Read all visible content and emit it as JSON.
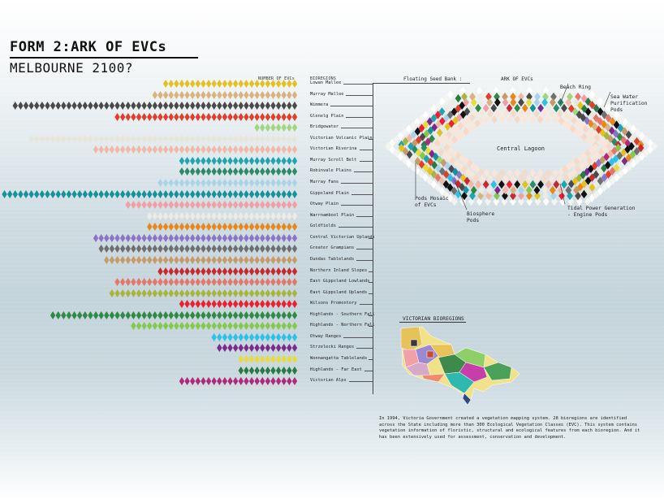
{
  "title": "FORM 2:ARK OF EVCs",
  "subtitle": "MELBOURNE 2100?",
  "headers": {
    "number": "NUMBER OF EVCs",
    "bioregions": "BIOREGIONS"
  },
  "bioregions": [
    {
      "name": "Lowan Mallee",
      "count": 25,
      "color": "#e3c11e"
    },
    {
      "name": "Murray Mallee",
      "count": 27,
      "color": "#d9b27e"
    },
    {
      "name": "Wimmera",
      "count": 53,
      "color": "#4a4a4a"
    },
    {
      "name": "Glenelg Plain",
      "count": 34,
      "color": "#e0402a"
    },
    {
      "name": "Bridgewater",
      "count": 8,
      "color": "#9fd77a"
    },
    {
      "name": "Victorian Volcanic Plain",
      "count": 50,
      "color": "#e8e6dc"
    },
    {
      "name": "Victorian Riverina",
      "count": 38,
      "color": "#f2b8a6"
    },
    {
      "name": "Murray Scroll Belt",
      "count": 22,
      "color": "#1fa4b2"
    },
    {
      "name": "Robinvale Plains",
      "count": 22,
      "color": "#2b8a6a"
    },
    {
      "name": "Murray Fans",
      "count": 26,
      "color": "#a8d4ea"
    },
    {
      "name": "Gippsland Plain",
      "count": 55,
      "color": "#16929b"
    },
    {
      "name": "Otway Plain",
      "count": 32,
      "color": "#f0a0a4"
    },
    {
      "name": "Warrnambool Plain",
      "count": 28,
      "color": "#ecebe4"
    },
    {
      "name": "Goldfields",
      "count": 28,
      "color": "#e8881c"
    },
    {
      "name": "Central Victorian Uplands",
      "count": 38,
      "color": "#8c74c4"
    },
    {
      "name": "Greater Grampians",
      "count": 37,
      "color": "#6f6f6f"
    },
    {
      "name": "Dundas Tablelands",
      "count": 36,
      "color": "#c89a66"
    },
    {
      "name": "Northern Inland Slopes",
      "count": 26,
      "color": "#c8282e"
    },
    {
      "name": "East Gippsland Lowlands",
      "count": 34,
      "color": "#e4776a"
    },
    {
      "name": "East Gippsland Uplands",
      "count": 35,
      "color": "#a8b43c"
    },
    {
      "name": "Wilsons Promontory",
      "count": 22,
      "color": "#ec2030"
    },
    {
      "name": "Highlands - Southern Fall",
      "count": 46,
      "color": "#2f8a44"
    },
    {
      "name": "Highlands - Northern Fall",
      "count": 31,
      "color": "#86c84a"
    },
    {
      "name": "Otway Ranges",
      "count": 16,
      "color": "#2cc2e8"
    },
    {
      "name": "Strzelecki Ranges",
      "count": 15,
      "color": "#7a2a8a"
    },
    {
      "name": "Wonnangatta Tablelands",
      "count": 11,
      "color": "#e8dc3c"
    },
    {
      "name": "Highlands - Far East",
      "count": 11,
      "color": "#2a7a44"
    },
    {
      "name": "Victorian Alps",
      "count": 22,
      "color": "#b02a7a"
    }
  ],
  "ark": {
    "floating_label": "Floating Seed Bank :",
    "ark_label": "ARK OF EVCs",
    "central_lagoon": "Central Lagoon",
    "annotations": {
      "beach_ring": "Beach Ring",
      "sea_water": [
        "Sea Water",
        "Purification",
        "Pods"
      ],
      "pods_mosaic": [
        "Pods Mosaic",
        "of EVCs"
      ],
      "biosphere": [
        "Biosphere",
        "Pods"
      ],
      "tidal": [
        "Tidal Power Generation",
        "- Engine Pods"
      ]
    }
  },
  "map": {
    "title": "VICTORIAN BIOREGIONS"
  },
  "description": "In 1994, Victoria Government created a vegetation mapping system. 28 bioregions are identified across the State including more than 300 Ecological Vegetation Classes (EVC). This system contains vegetation information of floristic, structural and ecological features from each bioregion. And it has been extensively used for assessment, conservation and development."
}
